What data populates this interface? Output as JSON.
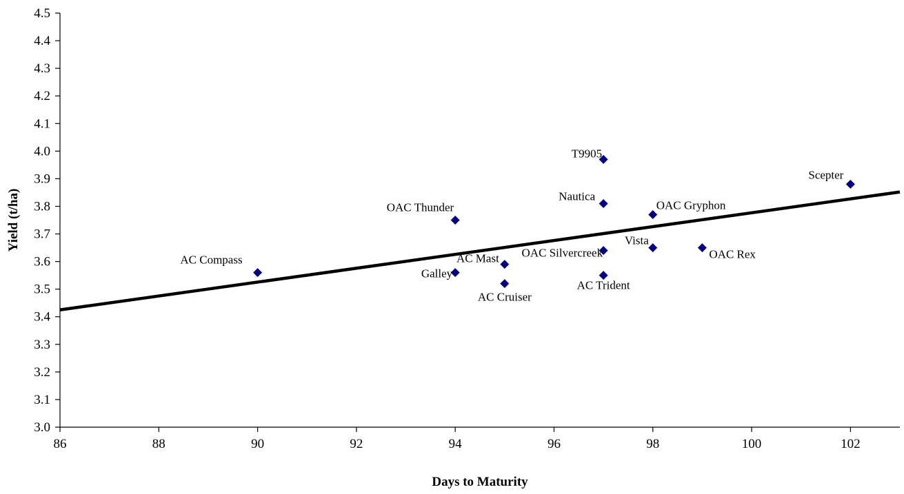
{
  "chart_data": {
    "type": "scatter",
    "title": "",
    "xlabel": "Days to Maturity",
    "ylabel": "Yield (t/ha)",
    "xlim": [
      86,
      103
    ],
    "ylim": [
      3.0,
      4.5
    ],
    "x_ticks": [
      86,
      88,
      90,
      92,
      94,
      96,
      98,
      100,
      102
    ],
    "y_ticks": [
      3.0,
      3.1,
      3.2,
      3.3,
      3.4,
      3.5,
      3.6,
      3.7,
      3.8,
      3.9,
      4.0,
      4.1,
      4.2,
      4.3,
      4.4,
      4.5
    ],
    "grid": false,
    "legend": "none",
    "marker_color": "#000080",
    "trendline_color": "#000000",
    "points": [
      {
        "label": "AC Compass",
        "x": 90,
        "y": 3.56
      },
      {
        "label": "OAC Thunder",
        "x": 94,
        "y": 3.75
      },
      {
        "label": "Galley",
        "x": 94,
        "y": 3.56
      },
      {
        "label": "AC Mast",
        "x": 95,
        "y": 3.59
      },
      {
        "label": "AC Cruiser",
        "x": 95,
        "y": 3.52
      },
      {
        "label": "T9905",
        "x": 97,
        "y": 3.97
      },
      {
        "label": "Nautica",
        "x": 97,
        "y": 3.81
      },
      {
        "label": "OAC Silvercreek",
        "x": 97,
        "y": 3.64
      },
      {
        "label": "AC Trident",
        "x": 97,
        "y": 3.55
      },
      {
        "label": "OAC Gryphon",
        "x": 98,
        "y": 3.77
      },
      {
        "label": "Vista",
        "x": 98,
        "y": 3.65
      },
      {
        "label": "OAC Rex",
        "x": 99,
        "y": 3.65
      },
      {
        "label": "Scepter",
        "x": 102,
        "y": 3.88
      }
    ],
    "trendline": {
      "x": [
        86,
        103
      ],
      "y": [
        3.425,
        3.852
      ]
    }
  }
}
